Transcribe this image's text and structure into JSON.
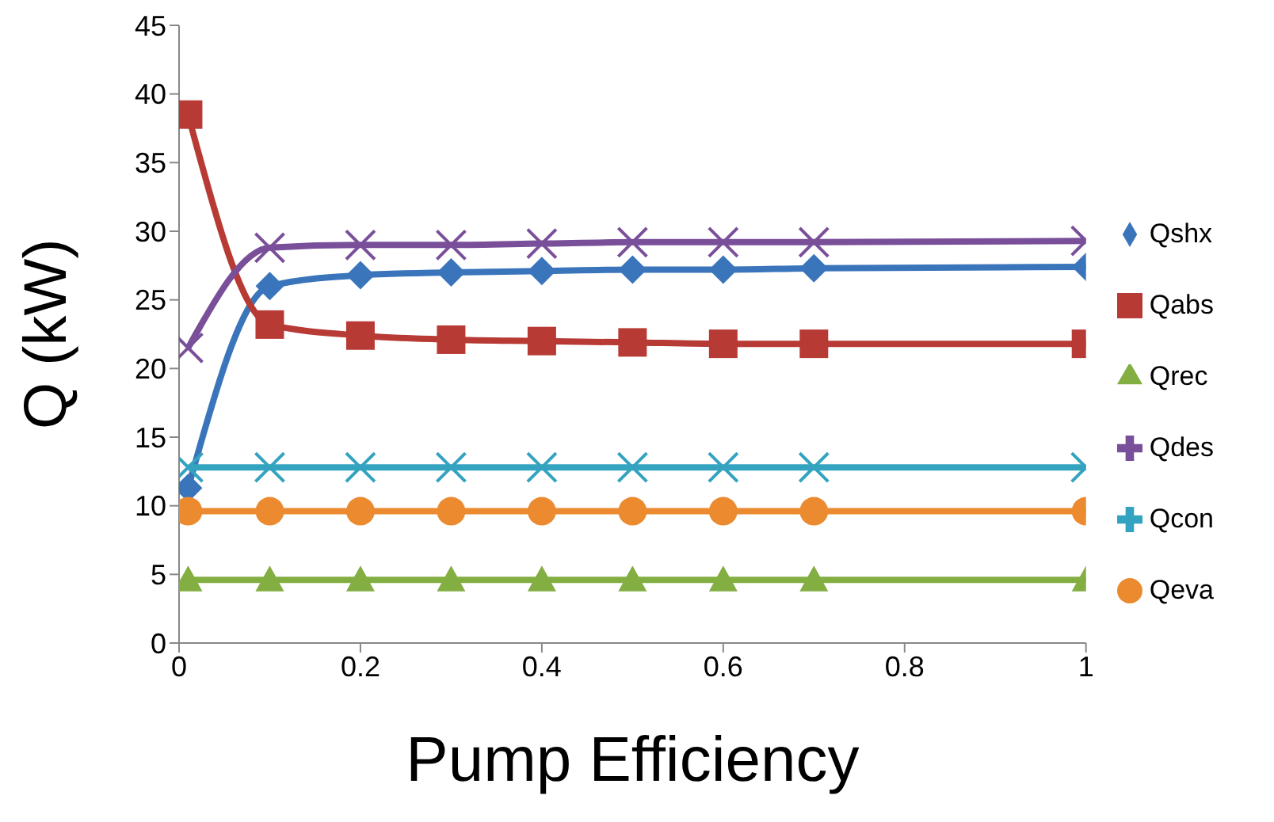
{
  "chart_data": {
    "type": "line",
    "xlabel": "Pump Efficiency",
    "ylabel": "Q (kW)",
    "x": [
      0.01,
      0.1,
      0.2,
      0.3,
      0.4,
      0.5,
      0.6,
      0.7,
      1
    ],
    "xlim": [
      0,
      1
    ],
    "xticks": [
      0,
      0.2,
      0.4,
      0.6,
      0.8,
      1
    ],
    "ylim": [
      0,
      45
    ],
    "yticks": [
      0,
      5,
      10,
      15,
      20,
      25,
      30,
      35,
      40,
      45
    ],
    "grid": false,
    "legend": "right",
    "line_style": "solid",
    "series": [
      {
        "name": "Qshx",
        "color": "#3a75bb",
        "marker": "diamond",
        "values": [
          11.3,
          26,
          26.8,
          27,
          27.1,
          27.2,
          27.2,
          27.3,
          27.4
        ]
      },
      {
        "name": "Qabs",
        "color": "#b83a35",
        "marker": "square",
        "values": [
          38.5,
          23.2,
          22.4,
          22.1,
          22,
          21.9,
          21.8,
          21.8,
          21.8
        ]
      },
      {
        "name": "Qrec",
        "color": "#82ae42",
        "marker": "triangle",
        "values": [
          4.6,
          4.6,
          4.6,
          4.6,
          4.6,
          4.6,
          4.6,
          4.6,
          4.6
        ]
      },
      {
        "name": "Qdes",
        "color": "#7a4f9a",
        "marker": "cross",
        "values": [
          21.5,
          28.8,
          29,
          29,
          29.1,
          29.2,
          29.2,
          29.2,
          29.3
        ]
      },
      {
        "name": "Qcon",
        "color": "#33a3c0",
        "marker": "cross",
        "values": [
          12.8,
          12.8,
          12.8,
          12.8,
          12.8,
          12.8,
          12.8,
          12.8,
          12.8
        ]
      },
      {
        "name": "Qeva",
        "color": "#ec8a2f",
        "marker": "circle",
        "values": [
          9.6,
          9.6,
          9.6,
          9.6,
          9.6,
          9.6,
          9.6,
          9.6,
          9.6
        ]
      }
    ]
  }
}
